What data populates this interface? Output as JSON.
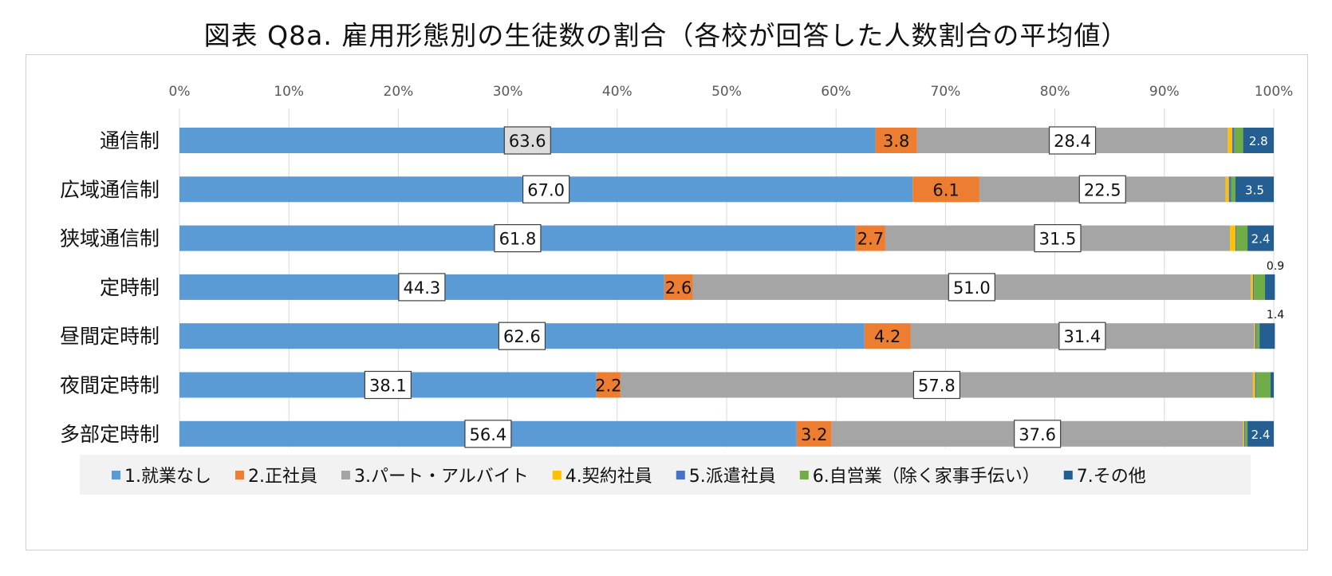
{
  "title": "図表 Q8a. 雇用形態別の生徒数の割合（各校が回答した人数割合の平均値）",
  "chart_data": {
    "type": "bar",
    "orientation": "horizontal",
    "stacked": "percent",
    "title": "図表 Q8a. 雇用形態別の生徒数の割合（各校が回答した人数割合の平均値）",
    "xlabel": "",
    "ylabel": "",
    "xlim": [
      0,
      100
    ],
    "x_ticks": [
      "0%",
      "10%",
      "20%",
      "30%",
      "40%",
      "50%",
      "60%",
      "70%",
      "80%",
      "90%",
      "100%"
    ],
    "grid": true,
    "legend_position": "bottom",
    "categories": [
      "通信制",
      "広域通信制",
      "狭域通信制",
      "定時制",
      "昼間定時制",
      "夜間定時制",
      "多部定時制"
    ],
    "series": [
      {
        "name": "1.就業なし",
        "color": "#5b9bd5",
        "values": [
          63.6,
          67.0,
          61.8,
          44.3,
          62.6,
          38.1,
          56.4
        ]
      },
      {
        "name": "2.正社員",
        "color": "#ed7d31",
        "values": [
          3.8,
          6.1,
          2.7,
          2.6,
          4.2,
          2.2,
          3.2
        ]
      },
      {
        "name": "3.パート・アルバイト",
        "color": "#a5a5a5",
        "values": [
          28.4,
          22.5,
          31.5,
          51.0,
          31.4,
          57.8,
          37.6
        ]
      },
      {
        "name": "4.契約社員",
        "color": "#ffc000",
        "values": [
          0.4,
          0.3,
          0.5,
          0.2,
          0.1,
          0.2,
          0.1
        ]
      },
      {
        "name": "5.派遣社員",
        "color": "#4472c4",
        "values": [
          0.2,
          0.2,
          0.1,
          0.1,
          0.1,
          0.1,
          0.1
        ]
      },
      {
        "name": "6.自営業（除く家事手伝い）",
        "color": "#70ad47",
        "values": [
          0.8,
          0.4,
          1.0,
          1.0,
          0.3,
          1.3,
          0.2
        ]
      },
      {
        "name": "7.その他",
        "color": "#255e91",
        "values": [
          2.8,
          3.5,
          2.4,
          0.9,
          1.4,
          0.3,
          2.4
        ]
      }
    ],
    "data_labels": [
      {
        "series": 0,
        "labels": [
          "63.6",
          "67.0",
          "61.8",
          "44.3",
          "62.6",
          "38.1",
          "56.4"
        ],
        "style": "boxed"
      },
      {
        "series": 1,
        "labels": [
          "3.8",
          "6.1",
          "2.7",
          "2.6",
          "4.2",
          "2.2",
          "3.2"
        ],
        "style": "plain"
      },
      {
        "series": 2,
        "labels": [
          "28.4",
          "22.5",
          "31.5",
          "51.0",
          "31.4",
          "57.8",
          "37.6"
        ],
        "style": "boxed"
      },
      {
        "series": 6,
        "labels": [
          "2.8",
          "3.5",
          "2.4",
          "0.9",
          "1.4",
          "",
          "2.4"
        ],
        "style": "small"
      }
    ]
  }
}
